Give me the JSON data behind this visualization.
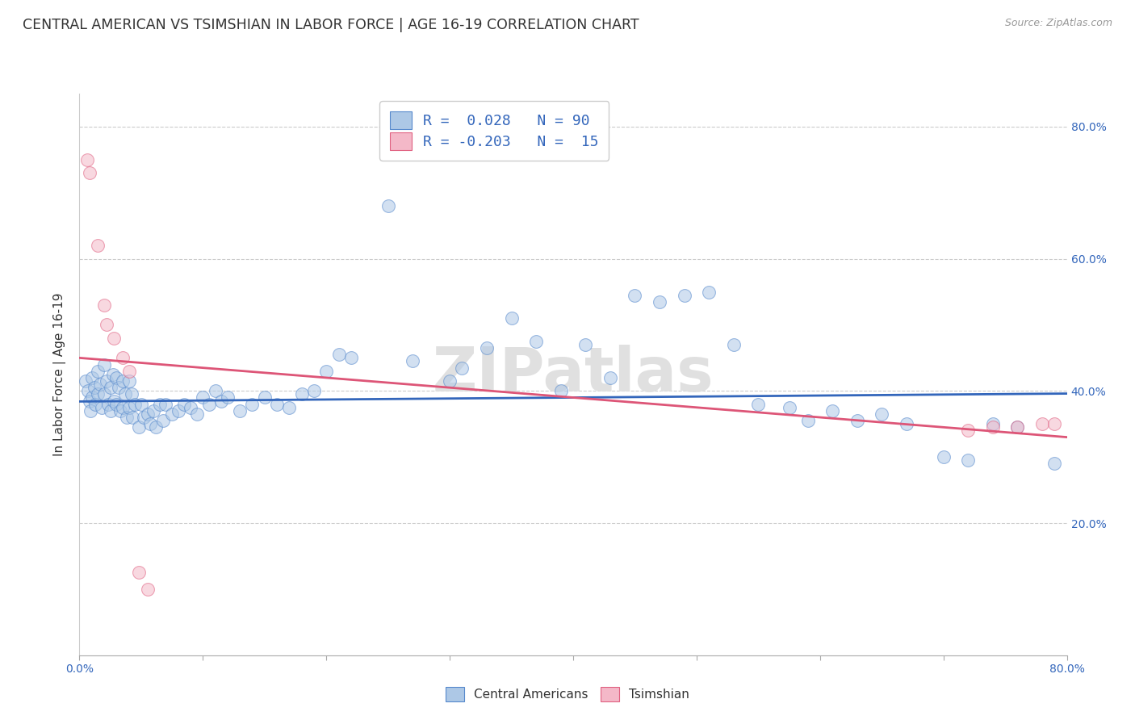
{
  "title": "CENTRAL AMERICAN VS TSIMSHIAN IN LABOR FORCE | AGE 16-19 CORRELATION CHART",
  "source": "Source: ZipAtlas.com",
  "ylabel": "In Labor Force | Age 16-19",
  "watermark": "ZIPatlas",
  "xlim": [
    0.0,
    0.8
  ],
  "ylim": [
    0.0,
    0.85
  ],
  "xtick_positions": [
    0.0,
    0.1,
    0.2,
    0.3,
    0.4,
    0.5,
    0.6,
    0.7,
    0.8
  ],
  "xticklabels": [
    "0.0%",
    "",
    "",
    "",
    "",
    "",
    "",
    "",
    "80.0%"
  ],
  "ytick_positions": [
    0.2,
    0.4,
    0.6,
    0.8
  ],
  "ytick_labels": [
    "20.0%",
    "40.0%",
    "60.0%",
    "80.0%"
  ],
  "blue_R": 0.028,
  "blue_N": 90,
  "pink_R": -0.203,
  "pink_N": 15,
  "blue_color": "#adc8e6",
  "pink_color": "#f4b8c8",
  "blue_edge_color": "#5588cc",
  "pink_edge_color": "#e06080",
  "blue_line_color": "#3366bb",
  "pink_line_color": "#dd5577",
  "legend_label_blue": "Central Americans",
  "legend_label_pink": "Tsimshian",
  "blue_points_x": [
    0.005,
    0.007,
    0.008,
    0.009,
    0.01,
    0.01,
    0.012,
    0.013,
    0.015,
    0.015,
    0.017,
    0.018,
    0.02,
    0.02,
    0.022,
    0.023,
    0.025,
    0.025,
    0.027,
    0.028,
    0.03,
    0.03,
    0.032,
    0.033,
    0.035,
    0.035,
    0.037,
    0.038,
    0.04,
    0.04,
    0.042,
    0.043,
    0.045,
    0.048,
    0.05,
    0.052,
    0.055,
    0.057,
    0.06,
    0.062,
    0.065,
    0.068,
    0.07,
    0.075,
    0.08,
    0.085,
    0.09,
    0.095,
    0.1,
    0.105,
    0.11,
    0.115,
    0.12,
    0.13,
    0.14,
    0.15,
    0.16,
    0.17,
    0.18,
    0.19,
    0.2,
    0.21,
    0.22,
    0.25,
    0.27,
    0.3,
    0.31,
    0.33,
    0.35,
    0.37,
    0.39,
    0.41,
    0.43,
    0.45,
    0.47,
    0.49,
    0.51,
    0.53,
    0.55,
    0.575,
    0.59,
    0.61,
    0.63,
    0.65,
    0.67,
    0.7,
    0.72,
    0.74,
    0.76,
    0.79
  ],
  "blue_points_y": [
    0.415,
    0.4,
    0.385,
    0.37,
    0.42,
    0.39,
    0.405,
    0.38,
    0.43,
    0.395,
    0.41,
    0.375,
    0.44,
    0.395,
    0.415,
    0.38,
    0.405,
    0.37,
    0.425,
    0.385,
    0.42,
    0.38,
    0.405,
    0.37,
    0.415,
    0.375,
    0.395,
    0.36,
    0.415,
    0.375,
    0.395,
    0.36,
    0.38,
    0.345,
    0.38,
    0.36,
    0.365,
    0.35,
    0.37,
    0.345,
    0.38,
    0.355,
    0.38,
    0.365,
    0.37,
    0.38,
    0.375,
    0.365,
    0.39,
    0.38,
    0.4,
    0.385,
    0.39,
    0.37,
    0.38,
    0.39,
    0.38,
    0.375,
    0.395,
    0.4,
    0.43,
    0.455,
    0.45,
    0.68,
    0.445,
    0.415,
    0.435,
    0.465,
    0.51,
    0.475,
    0.4,
    0.47,
    0.42,
    0.545,
    0.535,
    0.545,
    0.55,
    0.47,
    0.38,
    0.375,
    0.355,
    0.37,
    0.355,
    0.365,
    0.35,
    0.3,
    0.295,
    0.35,
    0.345,
    0.29
  ],
  "pink_points_x": [
    0.006,
    0.008,
    0.015,
    0.02,
    0.022,
    0.028,
    0.035,
    0.04,
    0.048,
    0.055,
    0.72,
    0.74,
    0.76,
    0.78,
    0.79
  ],
  "pink_points_y": [
    0.75,
    0.73,
    0.62,
    0.53,
    0.5,
    0.48,
    0.45,
    0.43,
    0.125,
    0.1,
    0.34,
    0.345,
    0.345,
    0.35,
    0.35
  ],
  "blue_trend_x": [
    0.0,
    0.8
  ],
  "blue_trend_y": [
    0.384,
    0.396
  ],
  "pink_trend_x": [
    0.0,
    0.8
  ],
  "pink_trend_y": [
    0.45,
    0.33
  ],
  "marker_size": 130,
  "alpha": 0.55,
  "background_color": "#ffffff",
  "grid_color": "#cccccc",
  "title_fontsize": 12.5,
  "axis_fontsize": 11,
  "tick_fontsize": 10,
  "source_fontsize": 9
}
